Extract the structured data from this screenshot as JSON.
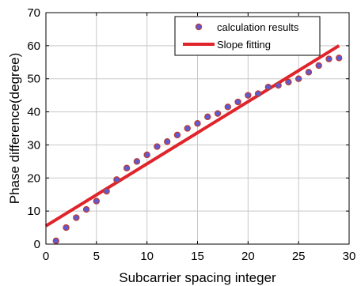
{
  "chart_data": {
    "type": "scatter",
    "xlabel": "Subcarrier spacing integer",
    "ylabel": "Phase difference(degree)",
    "xlim": [
      0,
      30
    ],
    "ylim": [
      0,
      70
    ],
    "xticks": [
      0,
      5,
      10,
      15,
      20,
      25,
      30
    ],
    "yticks": [
      0,
      10,
      20,
      30,
      40,
      50,
      60,
      70
    ],
    "grid": true,
    "legend_position": "top-right",
    "series": [
      {
        "name": "calculation results",
        "kind": "markers",
        "color": "#5b5bd6",
        "edge_color": "#c0392b",
        "x": [
          1,
          2,
          3,
          4,
          5,
          6,
          7,
          8,
          9,
          10,
          11,
          12,
          13,
          14,
          15,
          16,
          17,
          18,
          19,
          20,
          21,
          22,
          23,
          24,
          25,
          26,
          27,
          28,
          29
        ],
        "y": [
          1,
          5,
          8,
          10.5,
          13,
          16,
          19.5,
          23,
          25,
          27,
          29.5,
          31,
          33,
          35,
          36.5,
          38.5,
          39.5,
          41.5,
          43,
          45,
          45.5,
          47.5,
          48,
          49,
          50,
          52,
          54,
          56,
          56.3
        ]
      },
      {
        "name": "Slope fitting",
        "kind": "line",
        "color": "#e0242b",
        "x": [
          0,
          29
        ],
        "y": [
          5.5,
          60
        ]
      }
    ]
  }
}
